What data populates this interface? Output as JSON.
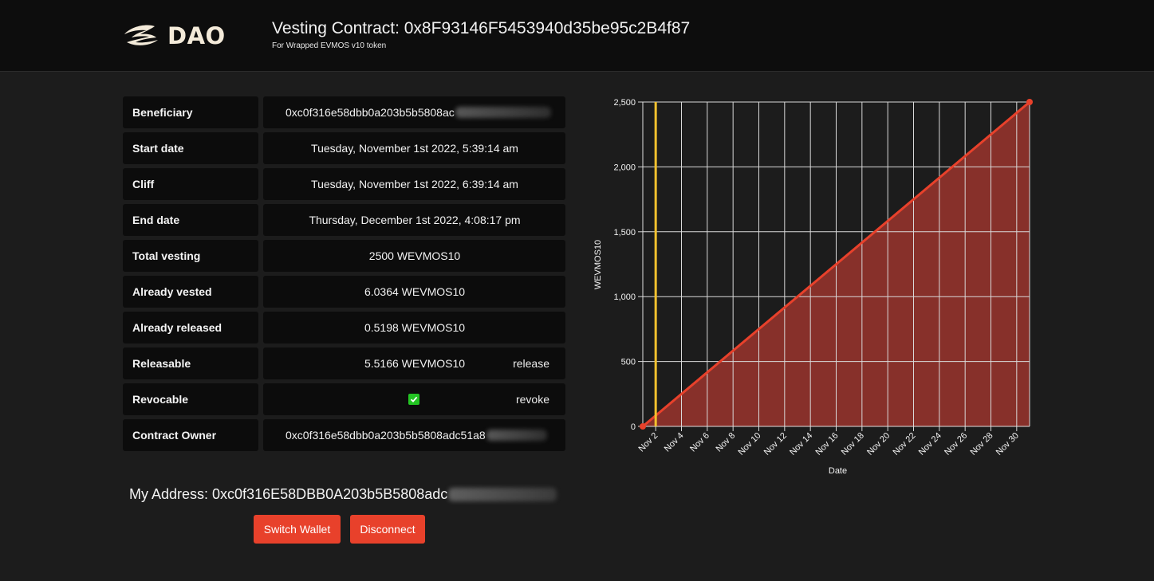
{
  "header": {
    "logo_text": "DAO",
    "title": "Vesting Contract: 0x8F93146F5453940d35be95c2B4f87",
    "subtitle": "For Wrapped EVMOS v10 token"
  },
  "info": {
    "beneficiary": {
      "label": "Beneficiary",
      "value": "0xc0f316e58dbb0a203b5b5808ac"
    },
    "start_date": {
      "label": "Start date",
      "value": "Tuesday, November 1st 2022, 5:39:14 am"
    },
    "cliff": {
      "label": "Cliff",
      "value": "Tuesday, November 1st 2022, 6:39:14 am"
    },
    "end_date": {
      "label": "End date",
      "value": "Thursday, December 1st 2022, 4:08:17 pm"
    },
    "total_vesting": {
      "label": "Total vesting",
      "value": "2500 WEVMOS10"
    },
    "already_vested": {
      "label": "Already vested",
      "value": "6.0364 WEVMOS10"
    },
    "already_released": {
      "label": "Already released",
      "value": "0.5198 WEVMOS10"
    },
    "releasable": {
      "label": "Releasable",
      "value": "5.5166 WEVMOS10",
      "action": "release"
    },
    "revocable": {
      "label": "Revocable",
      "checked": true,
      "action": "revoke"
    },
    "contract_owner": {
      "label": "Contract Owner",
      "value": "0xc0f316e58dbb0a203b5b5808adc51a8"
    }
  },
  "wallet": {
    "address_text": "My Address: 0xc0f316E58DBB0A203b5B5808adc",
    "switch_label": "Switch Wallet",
    "disconnect_label": "Disconnect"
  },
  "colors": {
    "accent": "#e8412b",
    "line": "#e8412b",
    "area": "#87302a",
    "cliff_marker": "#f2c12e",
    "check": "#23c423"
  },
  "chart_data": {
    "type": "area",
    "xlabel": "Date",
    "ylabel": "WEVMOS10",
    "x_ticks": [
      "Nov 2",
      "Nov 4",
      "Nov 6",
      "Nov 8",
      "Nov 10",
      "Nov 12",
      "Nov 14",
      "Nov 16",
      "Nov 18",
      "Nov 20",
      "Nov 22",
      "Nov 24",
      "Nov 26",
      "Nov 28",
      "Nov 30"
    ],
    "y_ticks": [
      "0",
      "500",
      "1,000",
      "1,500",
      "2,000",
      "2,500"
    ],
    "x_range": [
      "2022-11-01",
      "2022-12-01"
    ],
    "ylim": [
      0,
      2500
    ],
    "grid": true,
    "series": [
      {
        "x": [
          "2022-11-01",
          "2022-12-01"
        ],
        "values": [
          0,
          2500
        ]
      }
    ],
    "marker_line": {
      "x": "2022-11-02"
    }
  }
}
